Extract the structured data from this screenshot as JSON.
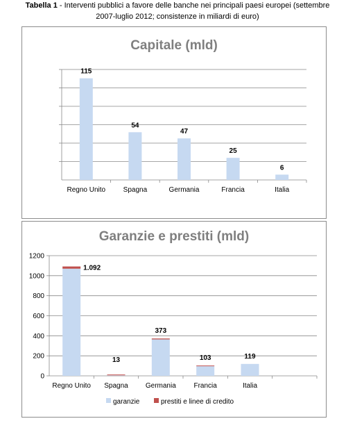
{
  "caption": {
    "label": "Tabella 1",
    "text_line1": " - Interventi pubblici a favore delle banche nei principali paesi europei (settembre",
    "text_line2": "2007-luglio 2012; consistenze in miliardi di euro)"
  },
  "chart_data": [
    {
      "type": "bar",
      "title": "Capitale (mld)",
      "categories": [
        "Regno Unito",
        "Spagna",
        "Germania",
        "Francia",
        "Italia"
      ],
      "values": [
        115,
        54,
        47,
        25,
        6
      ],
      "data_labels": [
        "115",
        "54",
        "47",
        "25",
        "6"
      ],
      "ylim": [
        0,
        125
      ],
      "y_tick_labels_shown": false,
      "grid": true,
      "colors": {
        "bar": "#c6d9f1",
        "grid": "#888888"
      }
    },
    {
      "type": "bar",
      "stacked": true,
      "title": "Garanzie e prestiti (mld)",
      "categories": [
        "Regno Unito",
        "Spagna",
        "Germania",
        "Francia",
        "Italia",
        ""
      ],
      "series": [
        {
          "name": "garanzie",
          "values": [
            1070,
            5,
            364,
            96,
            119,
            0
          ],
          "color": "#c6d9f1"
        },
        {
          "name": "prestiti e linee di credito",
          "values": [
            22,
            8,
            9,
            7,
            0,
            0
          ],
          "color": "#c0504d"
        }
      ],
      "data_labels": [
        "1.092",
        "13",
        "373",
        "103",
        "119",
        ""
      ],
      "ylim": [
        0,
        1200
      ],
      "y_ticks": [
        0,
        200,
        400,
        600,
        800,
        1000,
        1200
      ],
      "grid": true,
      "legend_position": "bottom"
    }
  ]
}
